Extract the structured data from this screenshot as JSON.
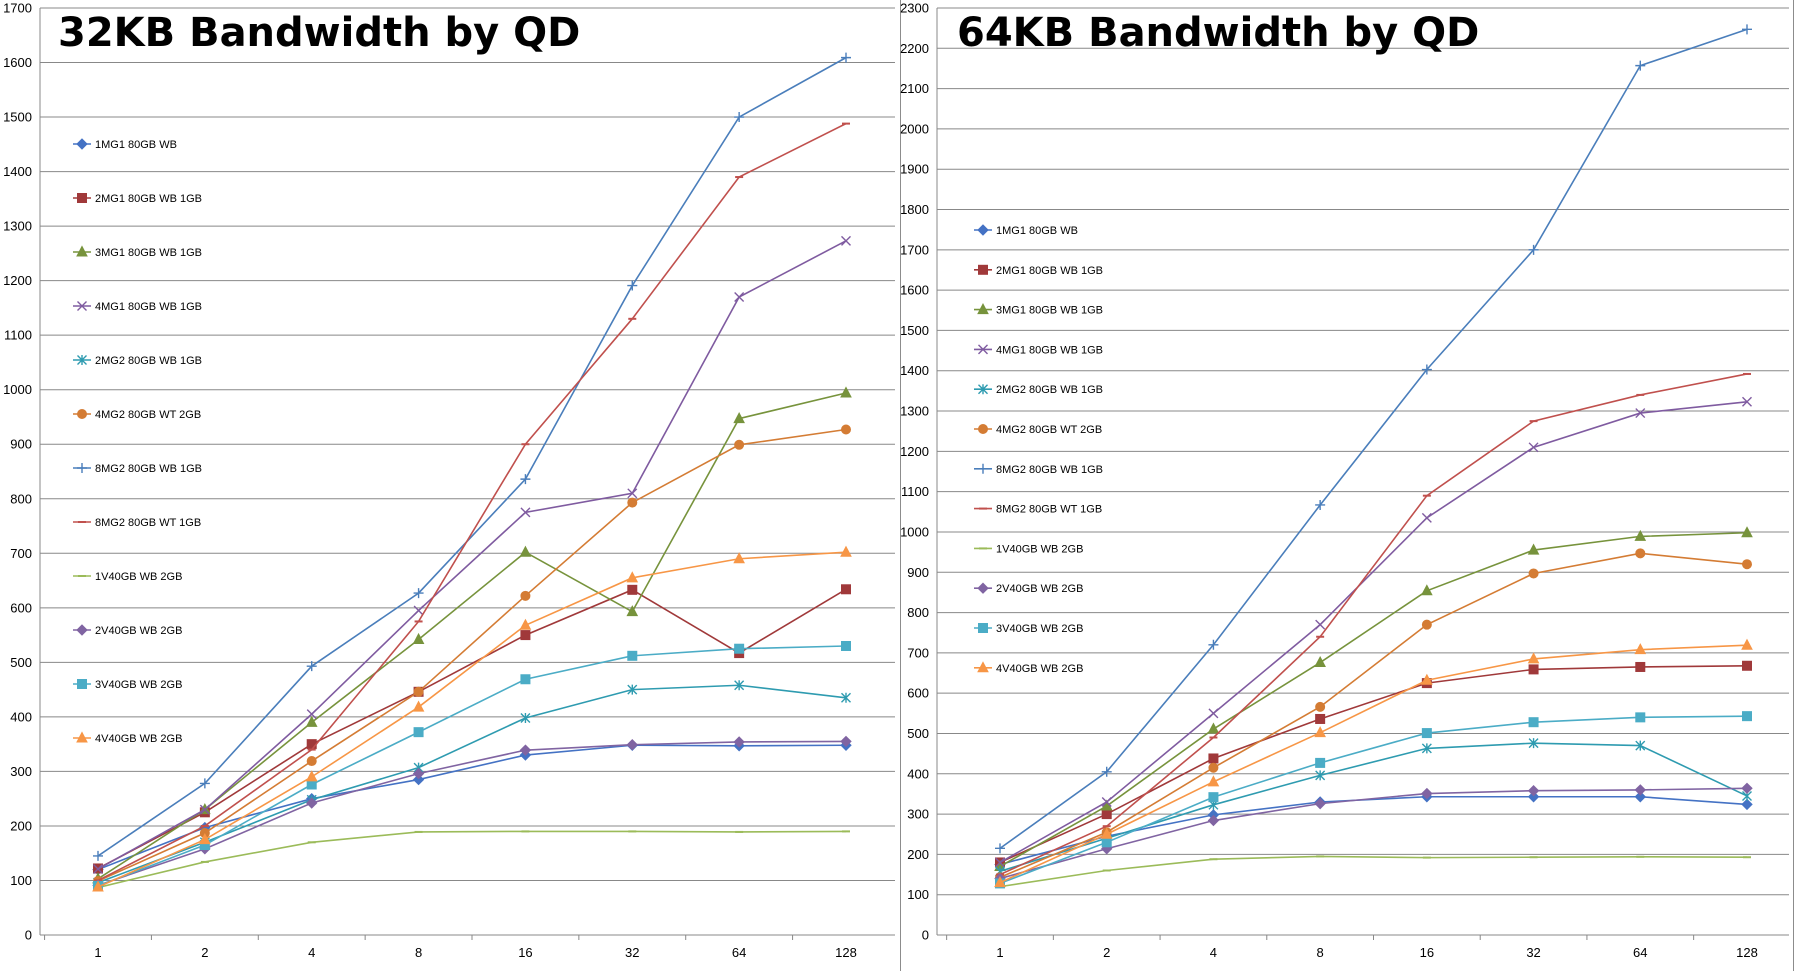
{
  "chart_data": [
    {
      "type": "line",
      "title": "32KB Bandwidth by QD",
      "xlabel": "",
      "ylabel": "",
      "categories": [
        "1",
        "2",
        "4",
        "8",
        "16",
        "32",
        "64",
        "128"
      ],
      "ylim": [
        0,
        1700
      ],
      "ytick_step": 100,
      "grid": true,
      "legend_position": "left-inside",
      "series": [
        {
          "name": "1MG1 80GB WB",
          "color": "#4472C4",
          "marker": "diamond",
          "values": [
            120,
            197,
            250,
            285,
            330,
            348,
            347,
            348
          ]
        },
        {
          "name": "2MG1 80GB WB 1GB",
          "color": "#A0393A",
          "marker": "square",
          "values": [
            122,
            225,
            350,
            446,
            550,
            633,
            517,
            634
          ]
        },
        {
          "name": "3MG1 80GB WB 1GB",
          "color": "#77933C",
          "marker": "triangle",
          "values": [
            103,
            230,
            390,
            542,
            702,
            593,
            947,
            994
          ]
        },
        {
          "name": "4MG1 80GB WB 1GB",
          "color": "#7F5BA0",
          "marker": "x",
          "values": [
            121,
            230,
            405,
            595,
            775,
            810,
            1170,
            1273
          ]
        },
        {
          "name": "2MG2 80GB WB 1GB",
          "color": "#2E9BB0",
          "marker": "star",
          "values": [
            96,
            170,
            248,
            307,
            398,
            450,
            458,
            435
          ]
        },
        {
          "name": "4MG2 80GB WT 2GB",
          "color": "#D47C34",
          "marker": "circle",
          "values": [
            99,
            187,
            319,
            446,
            622,
            793,
            899,
            927
          ]
        },
        {
          "name": "8MG2 80GB WB 1GB",
          "color": "#4A7EBB",
          "marker": "plus",
          "values": [
            145,
            278,
            493,
            627,
            836,
            1191,
            1500,
            1609
          ]
        },
        {
          "name": "8MG2 80GB WT 1GB",
          "color": "#C0504D",
          "marker": "dash",
          "values": [
            100,
            200,
            340,
            575,
            900,
            1130,
            1390,
            1488
          ]
        },
        {
          "name": "1V40GB WB 2GB",
          "color": "#9BBB59",
          "marker": "dash",
          "values": [
            87,
            134,
            170,
            189,
            190,
            190,
            189,
            190
          ]
        },
        {
          "name": "2V40GB WB 2GB",
          "color": "#8064A2",
          "marker": "diamond",
          "values": [
            91,
            158,
            242,
            296,
            339,
            349,
            354,
            355
          ]
        },
        {
          "name": "3V40GB WB 2GB",
          "color": "#4BACC6",
          "marker": "square",
          "values": [
            90,
            165,
            276,
            372,
            469,
            512,
            525,
            530
          ]
        },
        {
          "name": "4V40GB WB 2GB",
          "color": "#F79646",
          "marker": "triangle",
          "values": [
            88,
            175,
            290,
            418,
            568,
            655,
            690,
            702
          ]
        }
      ]
    },
    {
      "type": "line",
      "title": "64KB Bandwidth by QD",
      "xlabel": "",
      "ylabel": "",
      "categories": [
        "1",
        "2",
        "4",
        "8",
        "16",
        "32",
        "64",
        "128"
      ],
      "ylim": [
        0,
        2300
      ],
      "ytick_step": 100,
      "grid": true,
      "legend_position": "left-inside",
      "series": [
        {
          "name": "1MG1 80GB WB",
          "color": "#4472C4",
          "marker": "diamond",
          "values": [
            175,
            245,
            298,
            330,
            343,
            343,
            343,
            324
          ]
        },
        {
          "name": "2MG1 80GB WB 1GB",
          "color": "#A0393A",
          "marker": "square",
          "values": [
            180,
            300,
            438,
            536,
            625,
            659,
            665,
            668
          ]
        },
        {
          "name": "3MG1 80GB WB 1GB",
          "color": "#77933C",
          "marker": "triangle",
          "values": [
            170,
            320,
            511,
            676,
            854,
            955,
            989,
            998
          ]
        },
        {
          "name": "4MG1 80GB WB 1GB",
          "color": "#7F5BA0",
          "marker": "x",
          "values": [
            180,
            330,
            550,
            770,
            1035,
            1210,
            1295,
            1323
          ]
        },
        {
          "name": "2MG2 80GB WB 1GB",
          "color": "#2E9BB0",
          "marker": "star",
          "values": [
            158,
            240,
            323,
            396,
            463,
            476,
            470,
            345
          ]
        },
        {
          "name": "4MG2 80GB WT 2GB",
          "color": "#D47C34",
          "marker": "circle",
          "values": [
            143,
            255,
            415,
            566,
            770,
            897,
            947,
            920
          ]
        },
        {
          "name": "8MG2 80GB WB 1GB",
          "color": "#4A7EBB",
          "marker": "plus",
          "values": [
            215,
            405,
            720,
            1067,
            1403,
            1700,
            2157,
            2247
          ]
        },
        {
          "name": "8MG2 80GB WT 1GB",
          "color": "#C0504D",
          "marker": "dash",
          "values": [
            150,
            270,
            490,
            740,
            1090,
            1275,
            1340,
            1392
          ]
        },
        {
          "name": "1V40GB WB 2GB",
          "color": "#9BBB59",
          "marker": "dash",
          "values": [
            120,
            160,
            188,
            195,
            192,
            193,
            194,
            193
          ]
        },
        {
          "name": "2V40GB WB 2GB",
          "color": "#8064A2",
          "marker": "diamond",
          "values": [
            140,
            214,
            284,
            326,
            351,
            358,
            360,
            364
          ]
        },
        {
          "name": "3V40GB WB 2GB",
          "color": "#4BACC6",
          "marker": "square",
          "values": [
            128,
            230,
            342,
            427,
            501,
            528,
            540,
            543
          ]
        },
        {
          "name": "4V40GB WB 2GB",
          "color": "#F79646",
          "marker": "triangle",
          "values": [
            130,
            250,
            380,
            502,
            632,
            685,
            708,
            719
          ]
        }
      ]
    }
  ]
}
